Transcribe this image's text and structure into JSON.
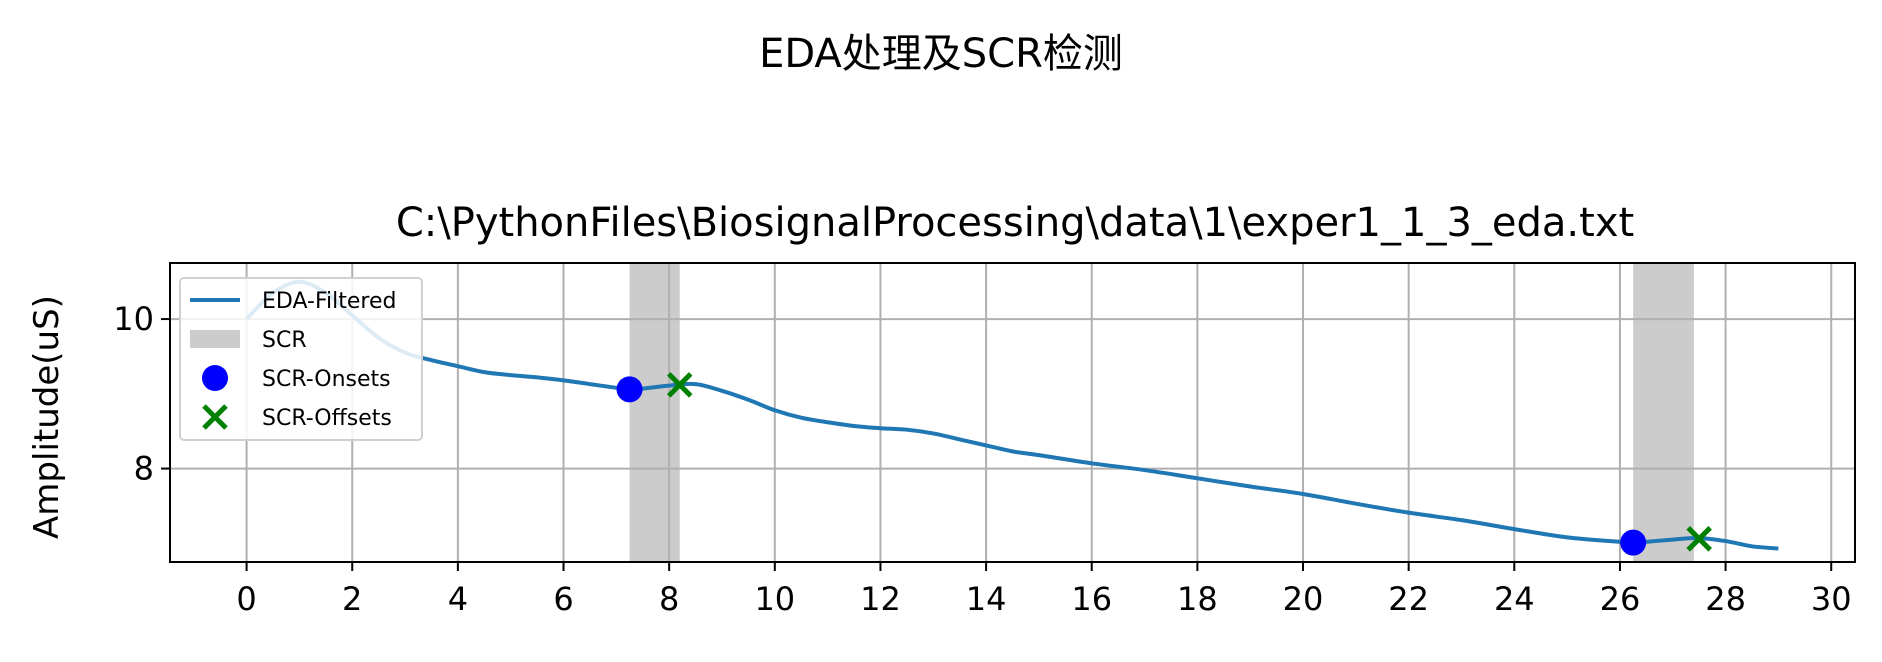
{
  "figure": {
    "suptitle": "EDA处理及SCR检测"
  },
  "chart_data": {
    "type": "line",
    "title": "C:\\PythonFiles\\BiosignalProcessing\\data\\1\\exper1_1_3_eda.txt",
    "xlabel": "",
    "ylabel": "Amplitude(uS)",
    "xlim": [
      -1.45,
      30.45
    ],
    "ylim": [
      6.75,
      10.75
    ],
    "xticks": [
      0,
      2,
      4,
      6,
      8,
      10,
      12,
      14,
      16,
      18,
      20,
      22,
      24,
      26,
      28,
      30
    ],
    "yticks": [
      8,
      10
    ],
    "grid": true,
    "legend_position": "upper-left",
    "legend": [
      "EDA-Filtered",
      "SCR",
      "SCR-Onsets",
      "SCR-Offsets"
    ],
    "series": [
      {
        "name": "EDA-Filtered",
        "color": "#1f77b4",
        "x": [
          0,
          0.5,
          1,
          1.5,
          2,
          2.5,
          3,
          3.5,
          4,
          4.5,
          5,
          5.5,
          6,
          6.5,
          7,
          7.25,
          7.5,
          8,
          8.5,
          9,
          9.5,
          10,
          10.5,
          11,
          11.5,
          12,
          12.5,
          13,
          13.5,
          14,
          14.5,
          15,
          16,
          17,
          18,
          19,
          20,
          21,
          22,
          23,
          24,
          25,
          26,
          26.25,
          26.5,
          27,
          27.5,
          28,
          28.5,
          29
        ],
        "y": [
          10.0,
          10.35,
          10.5,
          10.35,
          10.05,
          9.75,
          9.55,
          9.45,
          9.37,
          9.29,
          9.25,
          9.22,
          9.18,
          9.13,
          9.08,
          9.06,
          9.07,
          9.11,
          9.13,
          9.04,
          8.92,
          8.78,
          8.68,
          8.62,
          8.57,
          8.54,
          8.52,
          8.47,
          8.39,
          8.31,
          8.23,
          8.18,
          8.07,
          7.98,
          7.87,
          7.76,
          7.66,
          7.53,
          7.41,
          7.31,
          7.19,
          7.08,
          7.02,
          7.01,
          7.02,
          7.05,
          7.07,
          7.03,
          6.96,
          6.93
        ]
      }
    ],
    "scr_regions": [
      [
        7.25,
        8.2
      ],
      [
        26.25,
        27.4
      ]
    ],
    "scr_color": "#cccccc",
    "onsets": {
      "name": "SCR-Onsets",
      "color": "#0000ff",
      "x": [
        7.25,
        26.25
      ],
      "y": [
        9.06,
        7.01
      ]
    },
    "offsets": {
      "name": "SCR-Offsets",
      "color": "#008000",
      "x": [
        8.2,
        27.5
      ],
      "y": [
        9.12,
        7.06
      ]
    }
  }
}
